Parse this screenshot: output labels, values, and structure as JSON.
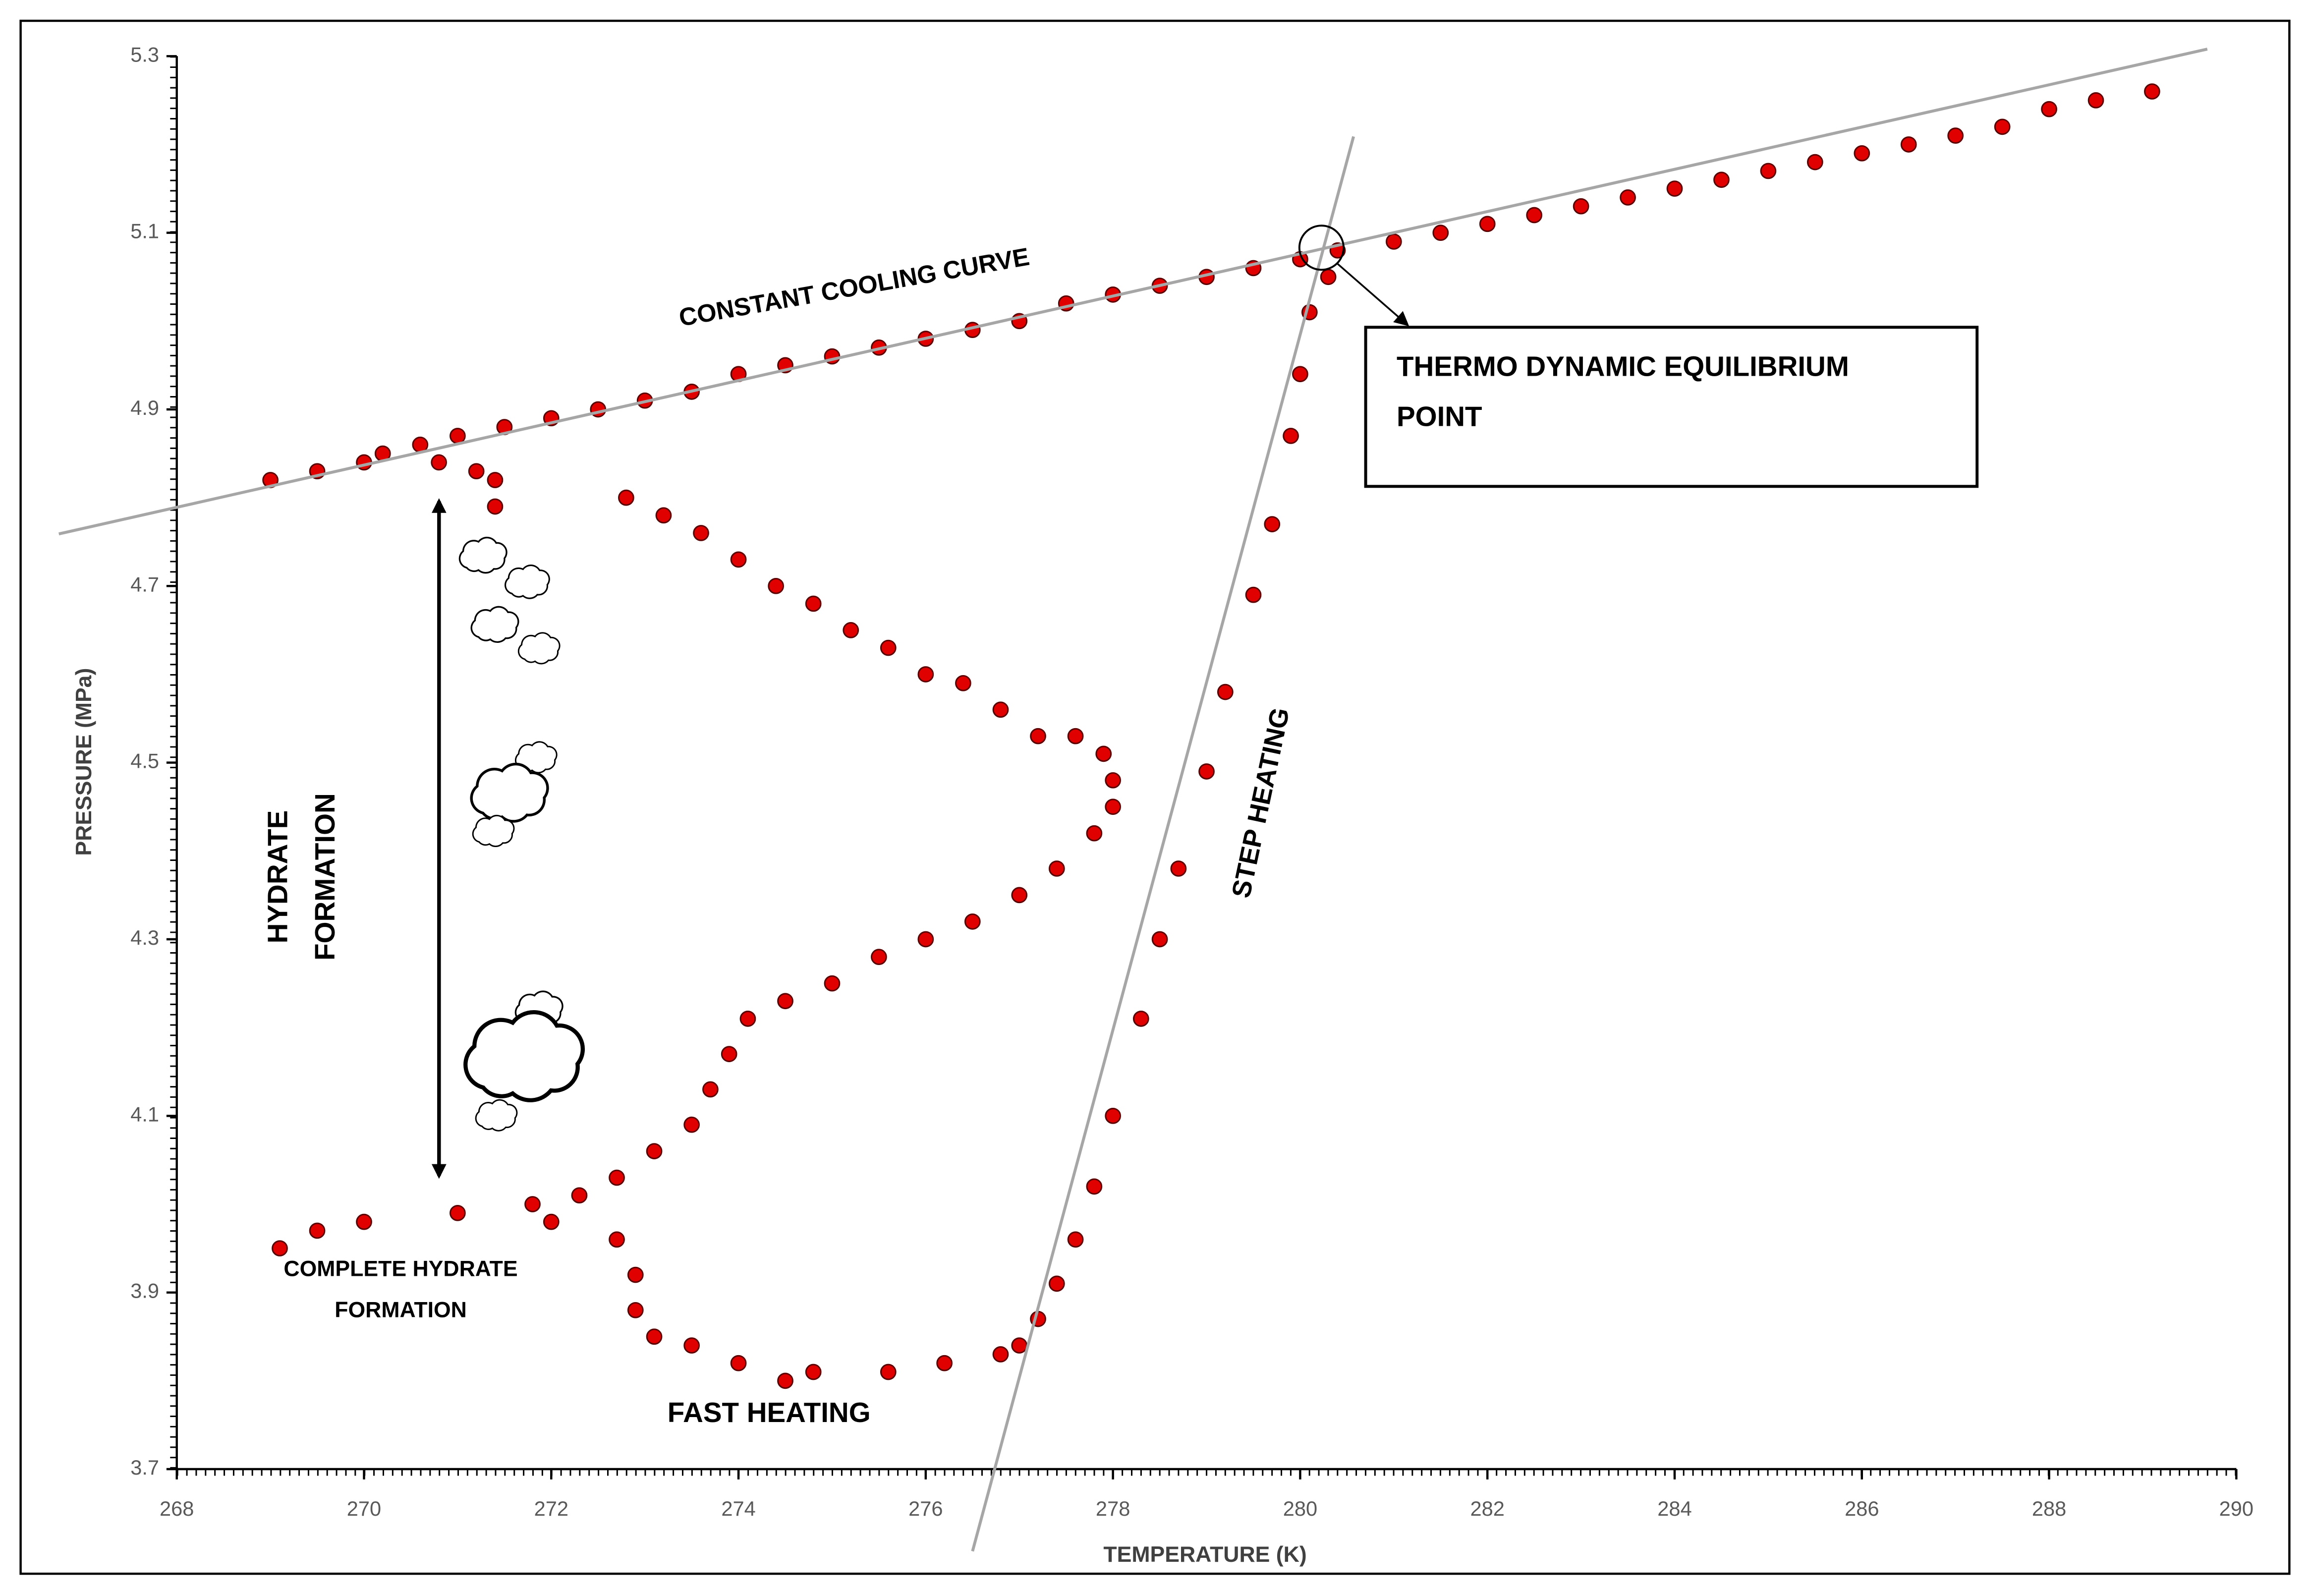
{
  "chart_data": {
    "type": "scatter",
    "xlabel": "TEMPERATURE (K)",
    "ylabel": "PRESSURE (MPa)",
    "xlim": [
      268,
      290
    ],
    "ylim": [
      3.7,
      5.3
    ],
    "xticks": [
      268,
      270,
      272,
      274,
      276,
      278,
      280,
      282,
      284,
      286,
      288,
      290
    ],
    "yticks": [
      3.7,
      3.9,
      4.1,
      4.3,
      4.5,
      4.7,
      4.9,
      5.1,
      5.3
    ],
    "series": [
      {
        "color": "#e00000",
        "x": [
          269.0,
          269.5,
          270.0,
          270.2,
          270.6,
          271.0,
          271.5,
          272.0,
          272.5,
          273.0,
          273.5,
          274.0,
          274.5,
          275.0,
          275.5,
          276.0,
          276.5,
          277.0,
          277.5,
          278.0,
          278.5,
          279.0,
          279.5,
          280.0,
          280.4,
          281.0,
          281.5,
          282.0,
          282.5,
          283.0,
          283.5,
          284.0,
          284.5,
          285.0,
          285.5,
          286.0,
          286.5,
          287.0,
          287.5,
          288.0,
          288.5,
          289.1,
          270.8,
          271.2,
          271.4,
          271.4,
          272.8,
          273.2,
          273.6,
          274.0,
          274.4,
          274.8,
          275.2,
          275.6,
          276.0,
          276.4,
          276.8,
          277.2,
          277.6,
          277.9,
          278.0,
          278.0,
          277.8,
          277.4,
          277.0,
          276.5,
          276.0,
          275.5,
          275.0,
          274.5,
          274.1,
          273.9,
          273.7,
          273.5,
          273.1,
          272.7,
          272.3,
          271.8,
          271.0,
          270.0,
          269.5,
          269.1,
          272.0,
          272.7,
          272.9,
          272.9,
          273.1,
          273.5,
          274.0,
          274.5,
          274.8,
          275.6,
          276.2,
          276.8,
          277.0,
          277.2,
          277.4,
          277.6,
          277.8,
          278.0,
          278.3,
          278.5,
          278.7,
          279.0,
          279.2,
          279.5,
          279.7,
          279.9,
          280.0,
          280.1,
          280.3
        ],
        "values": [
          4.82,
          4.83,
          4.84,
          4.85,
          4.86,
          4.87,
          4.88,
          4.89,
          4.9,
          4.91,
          4.92,
          4.94,
          4.95,
          4.96,
          4.97,
          4.98,
          4.99,
          5.0,
          5.02,
          5.03,
          5.04,
          5.05,
          5.06,
          5.07,
          5.08,
          5.09,
          5.1,
          5.11,
          5.12,
          5.13,
          5.14,
          5.15,
          5.16,
          5.17,
          5.18,
          5.19,
          5.2,
          5.21,
          5.22,
          5.24,
          5.25,
          5.26,
          4.84,
          4.83,
          4.82,
          4.79,
          4.8,
          4.78,
          4.76,
          4.73,
          4.7,
          4.68,
          4.65,
          4.63,
          4.6,
          4.59,
          4.56,
          4.53,
          4.53,
          4.51,
          4.48,
          4.45,
          4.42,
          4.38,
          4.35,
          4.32,
          4.3,
          4.28,
          4.25,
          4.23,
          4.21,
          4.17,
          4.13,
          4.09,
          4.06,
          4.03,
          4.01,
          4.0,
          3.99,
          3.98,
          3.97,
          3.95,
          3.98,
          3.96,
          3.92,
          3.88,
          3.85,
          3.84,
          3.82,
          3.8,
          3.81,
          3.81,
          3.82,
          3.83,
          3.84,
          3.87,
          3.91,
          3.96,
          4.02,
          4.1,
          4.21,
          4.3,
          4.38,
          4.49,
          4.58,
          4.69,
          4.77,
          4.87,
          4.94,
          5.01,
          5.05
        ]
      }
    ],
    "trend_lines": [
      {
        "color": "#a6a6a6",
        "x": [
          266.74,
          289.69
        ],
        "values": [
          4.759,
          5.308
        ]
      },
      {
        "color": "#a6a6a6",
        "x": [
          276.5,
          280.57
        ],
        "values": [
          3.607,
          5.209
        ]
      }
    ],
    "annotations": [
      "CONSTANT COOLING CURVE",
      "THERMO DYNAMIC EQUILIBRIUM",
      "POINT",
      "HYDRATE",
      "FORMATION",
      "STEP HEATING",
      "COMPLETE HYDRATE",
      "FORMATION",
      "FAST HEATING"
    ]
  }
}
